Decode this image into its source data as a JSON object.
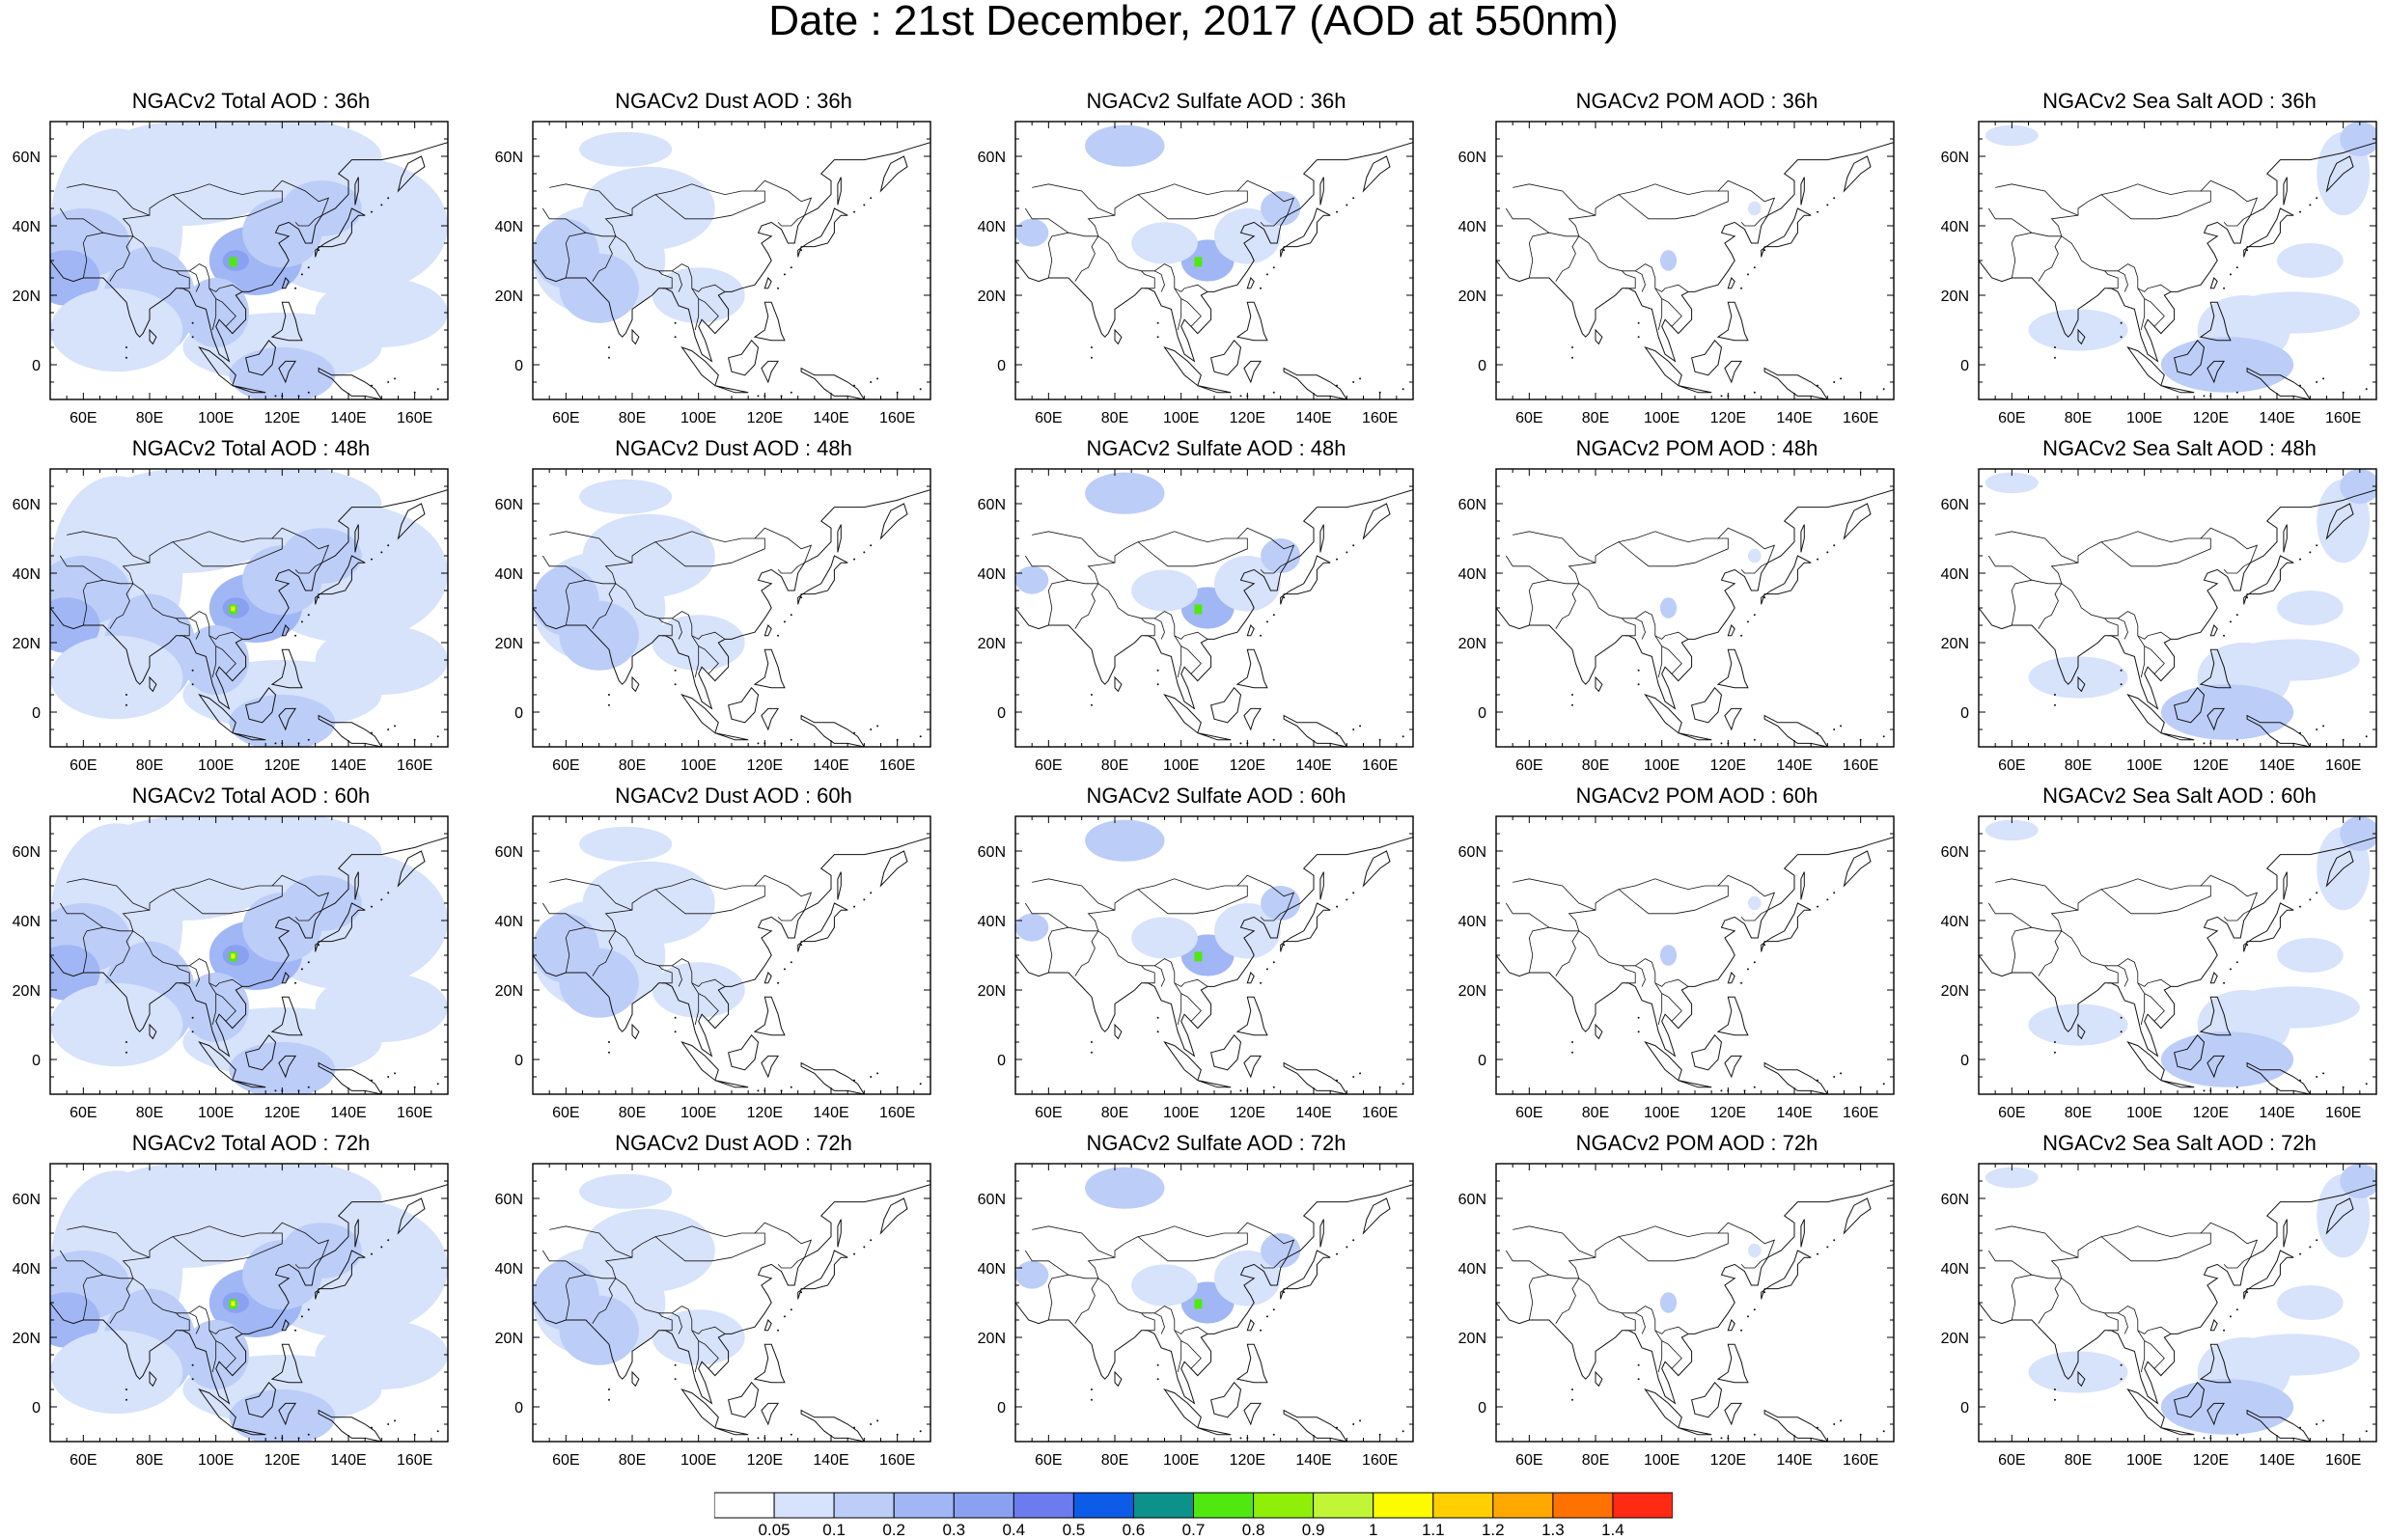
{
  "title": "Date : 21st December, 2017 (AOD at 550nm)",
  "rows": [
    [
      "NGACv2 Total AOD : 36h",
      "NGACv2 Dust AOD : 36h",
      "NGACv2 Sulfate AOD : 36h",
      "NGACv2 POM AOD : 36h",
      "NGACv2 Sea Salt AOD : 36h"
    ],
    [
      "NGACv2 Total AOD : 48h",
      "NGACv2 Dust AOD : 48h",
      "NGACv2 Sulfate AOD : 48h",
      "NGACv2 POM AOD : 48h",
      "NGACv2 Sea Salt AOD : 48h"
    ],
    [
      "NGACv2 Total AOD : 60h",
      "NGACv2 Dust AOD : 60h",
      "NGACv2 Sulfate AOD : 60h",
      "NGACv2 POM AOD : 60h",
      "NGACv2 Sea Salt AOD : 60h"
    ],
    [
      "NGACv2 Total AOD : 72h",
      "NGACv2 Dust AOD : 72h",
      "NGACv2 Sulfate AOD : 72h",
      "NGACv2 POM AOD : 72h",
      "NGACv2 Sea Salt  AOD : 72h"
    ]
  ],
  "map": {
    "lon_range": [
      50,
      170
    ],
    "lat_range": [
      -10,
      70
    ],
    "lon_ticks": [
      "60E",
      "80E",
      "100E",
      "120E",
      "140E",
      "160E"
    ],
    "lat_ticks": [
      "60N",
      "40N",
      "20N",
      "0"
    ]
  },
  "colorbar": {
    "labels": [
      "0.05",
      "0.1",
      "0.2",
      "0.3",
      "0.4",
      "0.5",
      "0.6",
      "0.7",
      "0.8",
      "0.9",
      "1",
      "1.1",
      "1.2",
      "1.3",
      "1.4"
    ],
    "colors": [
      "#ffffff",
      "#d7e2fb",
      "#bccdf8",
      "#a1b6f5",
      "#8aa1f2",
      "#6c7cee",
      "#0d5ce7",
      "#0c928b",
      "#4fe80f",
      "#8fef08",
      "#c1f536",
      "#fdfb00",
      "#ffcf00",
      "#ffa800",
      "#ff7200",
      "#ff2a14"
    ]
  },
  "colors": {
    "light_blue": "#d7e2fb",
    "mid_blue": "#bccdf8",
    "blue": "#a1b6f5",
    "dark_blue": "#8aa1f2",
    "hot_green": "#4fe80f",
    "hot_yellow": "#fdfb00"
  }
}
